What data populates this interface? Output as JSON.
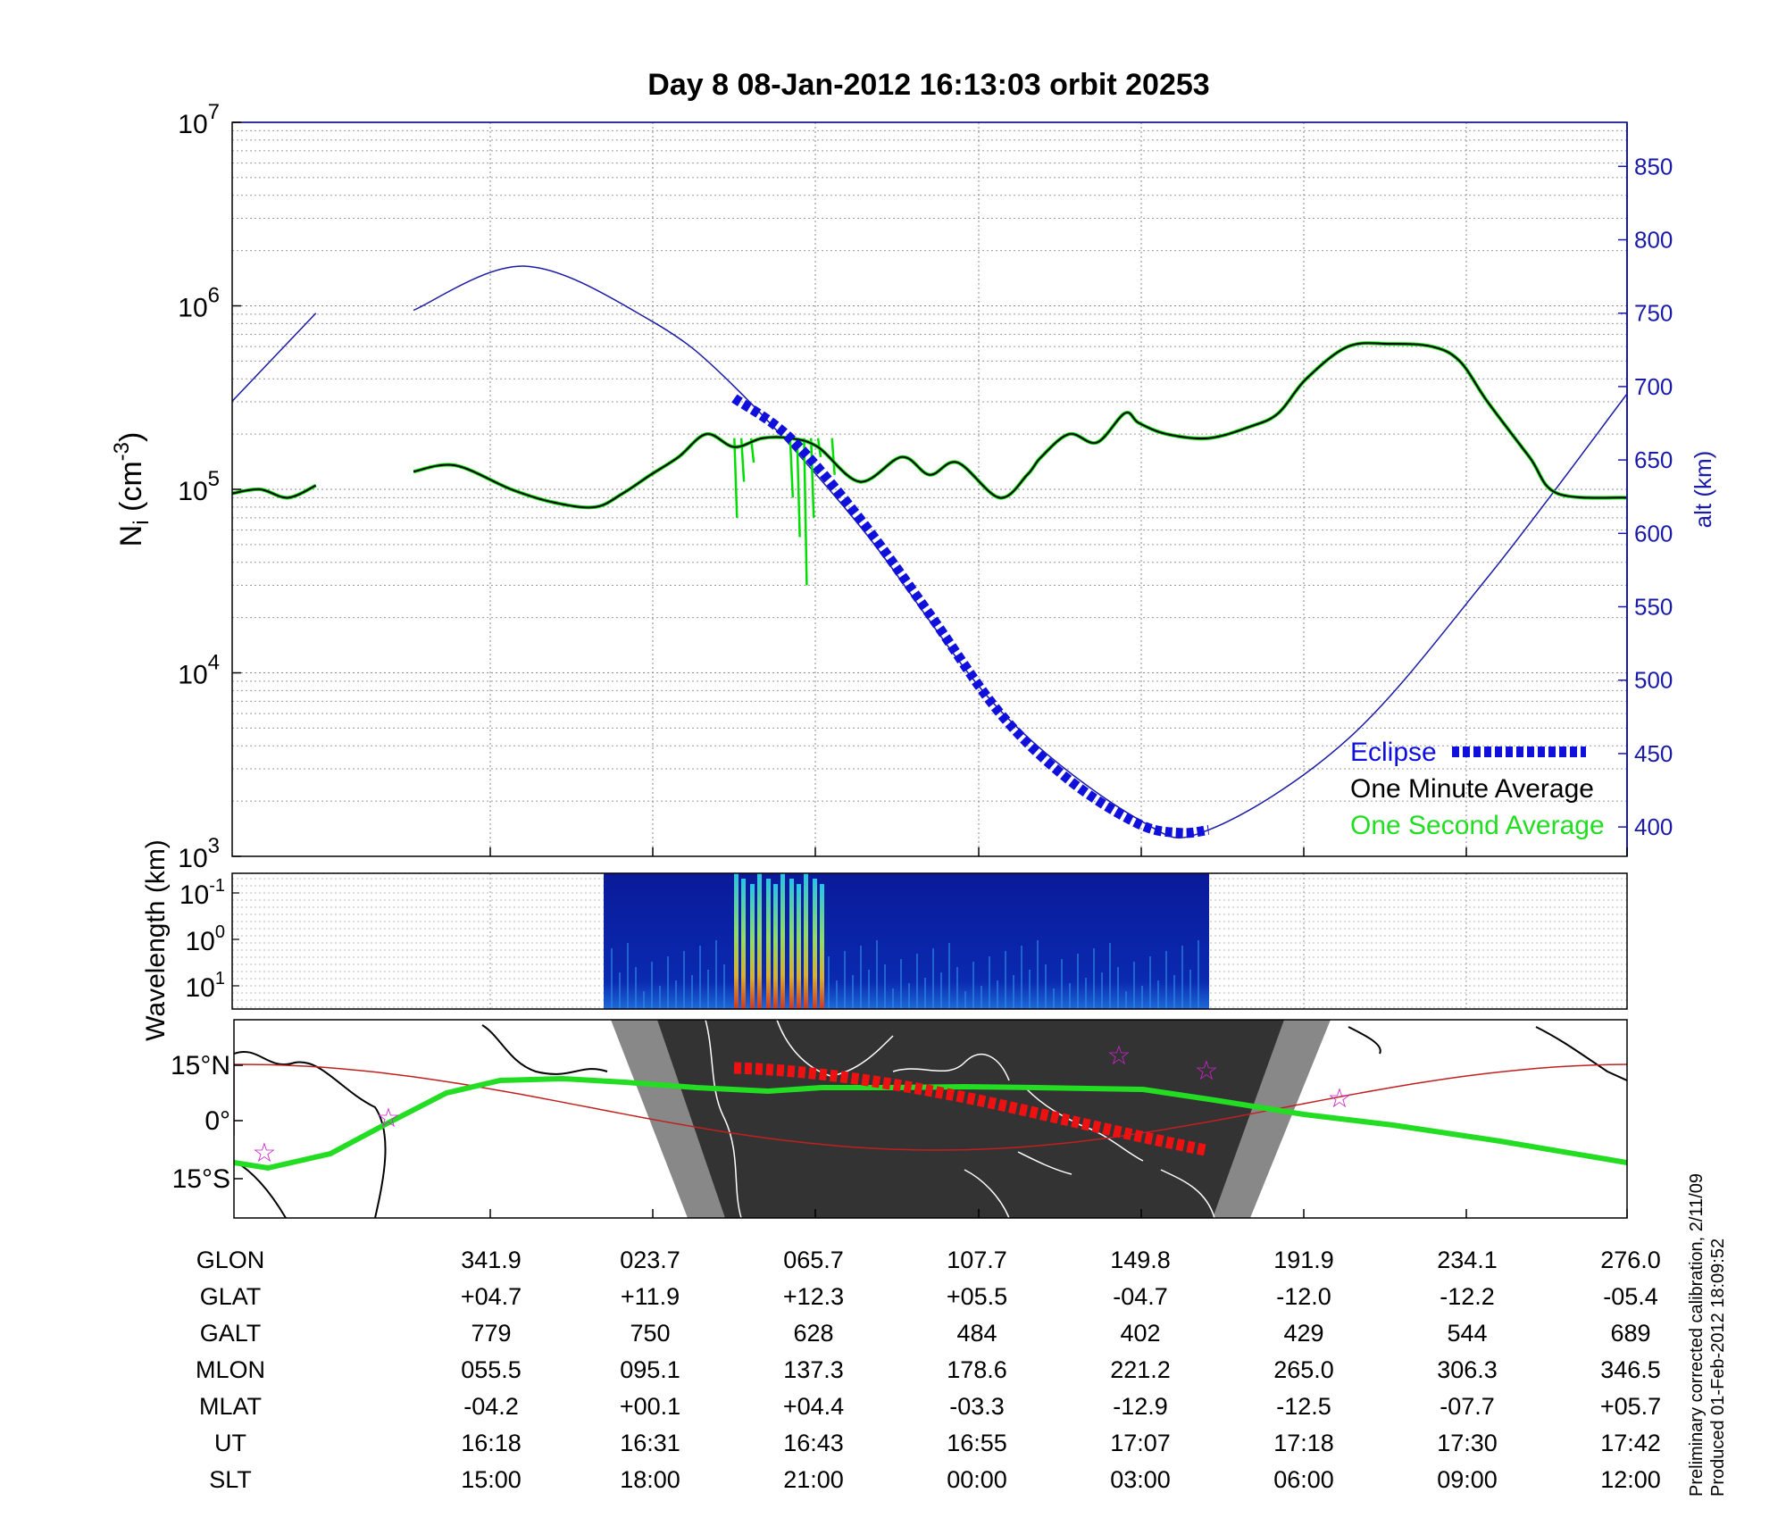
{
  "chart_data": [
    {
      "type": "line",
      "title": "Day 8  08-Jan-2012 16:13:03   orbit 20253",
      "ylabel_left": {
        "main": "N",
        "sub": "i",
        "rest": " (cm",
        "sup": "-3",
        "close": ")"
      },
      "ylabel_right": "alt (km)",
      "yscale_left": "log",
      "ylim_left": [
        1000,
        10000000
      ],
      "y_ticks_left": [
        {
          "base": "10",
          "exp": "3",
          "value": 1000
        },
        {
          "base": "10",
          "exp": "4",
          "value": 10000
        },
        {
          "base": "10",
          "exp": "5",
          "value": 100000
        },
        {
          "base": "10",
          "exp": "6",
          "value": 1000000
        },
        {
          "base": "10",
          "exp": "7",
          "value": 10000000
        }
      ],
      "ylim_right": [
        380,
        880
      ],
      "y_ticks_right": [
        400,
        450,
        500,
        550,
        600,
        650,
        700,
        750,
        800,
        850
      ],
      "x_ticks_ut": [
        "16:18",
        "16:31",
        "16:43",
        "16:55",
        "17:07",
        "17:18",
        "17:30",
        "17:42"
      ],
      "grid": true,
      "legend_position": "bottom-right",
      "series": [
        {
          "name": "Eclipse",
          "color": "#1010dd",
          "style": "dashed-thick",
          "axis": "right",
          "x": [
            0.36,
            0.4,
            0.45,
            0.5,
            0.55,
            0.6,
            0.65,
            0.68,
            0.7
          ],
          "y": [
            692,
            665,
            610,
            545,
            478,
            432,
            402,
            396,
            398
          ]
        },
        {
          "name": "One Minute Average",
          "color": "#000000",
          "axis": "left",
          "x": [
            0.0,
            0.02,
            0.04,
            0.06,
            0.08,
            0.13,
            0.16,
            0.2,
            0.23,
            0.26,
            0.28,
            0.3,
            0.32,
            0.34,
            0.36,
            0.38,
            0.4,
            0.42,
            0.45,
            0.48,
            0.5,
            0.52,
            0.55,
            0.57,
            0.58,
            0.6,
            0.62,
            0.64,
            0.65,
            0.67,
            0.7,
            0.73,
            0.75,
            0.77,
            0.8,
            0.83,
            0.86,
            0.88,
            0.9,
            0.93,
            0.95,
            1.0
          ],
          "y": [
            95000,
            100000,
            90000,
            105000,
            115000,
            125000,
            135000,
            100000,
            85000,
            80000,
            95000,
            120000,
            150000,
            200000,
            170000,
            190000,
            190000,
            170000,
            110000,
            150000,
            120000,
            140000,
            90000,
            120000,
            150000,
            200000,
            180000,
            260000,
            230000,
            200000,
            190000,
            220000,
            260000,
            400000,
            600000,
            620000,
            600000,
            500000,
            300000,
            150000,
            95000,
            90000
          ]
        },
        {
          "name": "One Second Average",
          "color": "#00dd00",
          "axis": "left"
        },
        {
          "name": "Altitude",
          "color": "#1a1aa8",
          "axis": "right",
          "x": [
            0.0,
            0.06,
            0.07,
            0.13,
            0.21,
            0.3,
            0.36,
            0.45,
            0.55,
            0.65,
            0.7,
            0.8,
            0.9,
            1.0
          ],
          "y": [
            690,
            750,
            null,
            752,
            782,
            745,
            700,
            605,
            480,
            405,
            398,
            460,
            570,
            695
          ]
        }
      ]
    },
    {
      "type": "heatmap",
      "ylabel": "Wavelength (km)",
      "yscale": "log",
      "y_ticks": [
        {
          "base": "10",
          "exp": "-1"
        },
        {
          "base": "10",
          "exp": "0"
        },
        {
          "base": "10",
          "exp": "1"
        }
      ]
    },
    {
      "type": "map",
      "y_ticks": [
        "15°N",
        "0°",
        "15°S"
      ],
      "stars": 5
    },
    {
      "type": "table",
      "rows": [
        {
          "label": "GLON",
          "values": [
            "341.9",
            "023.7",
            "065.7",
            "107.7",
            "149.8",
            "191.9",
            "234.1",
            "276.0"
          ]
        },
        {
          "label": "GLAT",
          "values": [
            "+04.7",
            "+11.9",
            "+12.3",
            "+05.5",
            "-04.7",
            "-12.0",
            "-12.2",
            "-05.4"
          ]
        },
        {
          "label": "GALT",
          "values": [
            "779",
            "750",
            "628",
            "484",
            "402",
            "429",
            "544",
            "689"
          ]
        },
        {
          "label": "MLON",
          "values": [
            "055.5",
            "095.1",
            "137.3",
            "178.6",
            "221.2",
            "265.0",
            "306.3",
            "346.5"
          ]
        },
        {
          "label": "MLAT",
          "values": [
            "-04.2",
            "+00.1",
            "+04.4",
            "-03.3",
            "-12.9",
            "-12.5",
            "-07.7",
            "+05.7"
          ]
        },
        {
          "label": "UT",
          "values": [
            "16:18",
            "16:31",
            "16:43",
            "16:55",
            "17:07",
            "17:18",
            "17:30",
            "17:42"
          ]
        },
        {
          "label": "SLT",
          "values": [
            "15:00",
            "18:00",
            "21:00",
            "00:00",
            "03:00",
            "06:00",
            "09:00",
            "12:00"
          ]
        }
      ]
    }
  ],
  "footnote": {
    "line1": "Preliminary corrected calibration, 2/11/09",
    "line2": "Produced 01-Feb-2012 18:09:52"
  }
}
